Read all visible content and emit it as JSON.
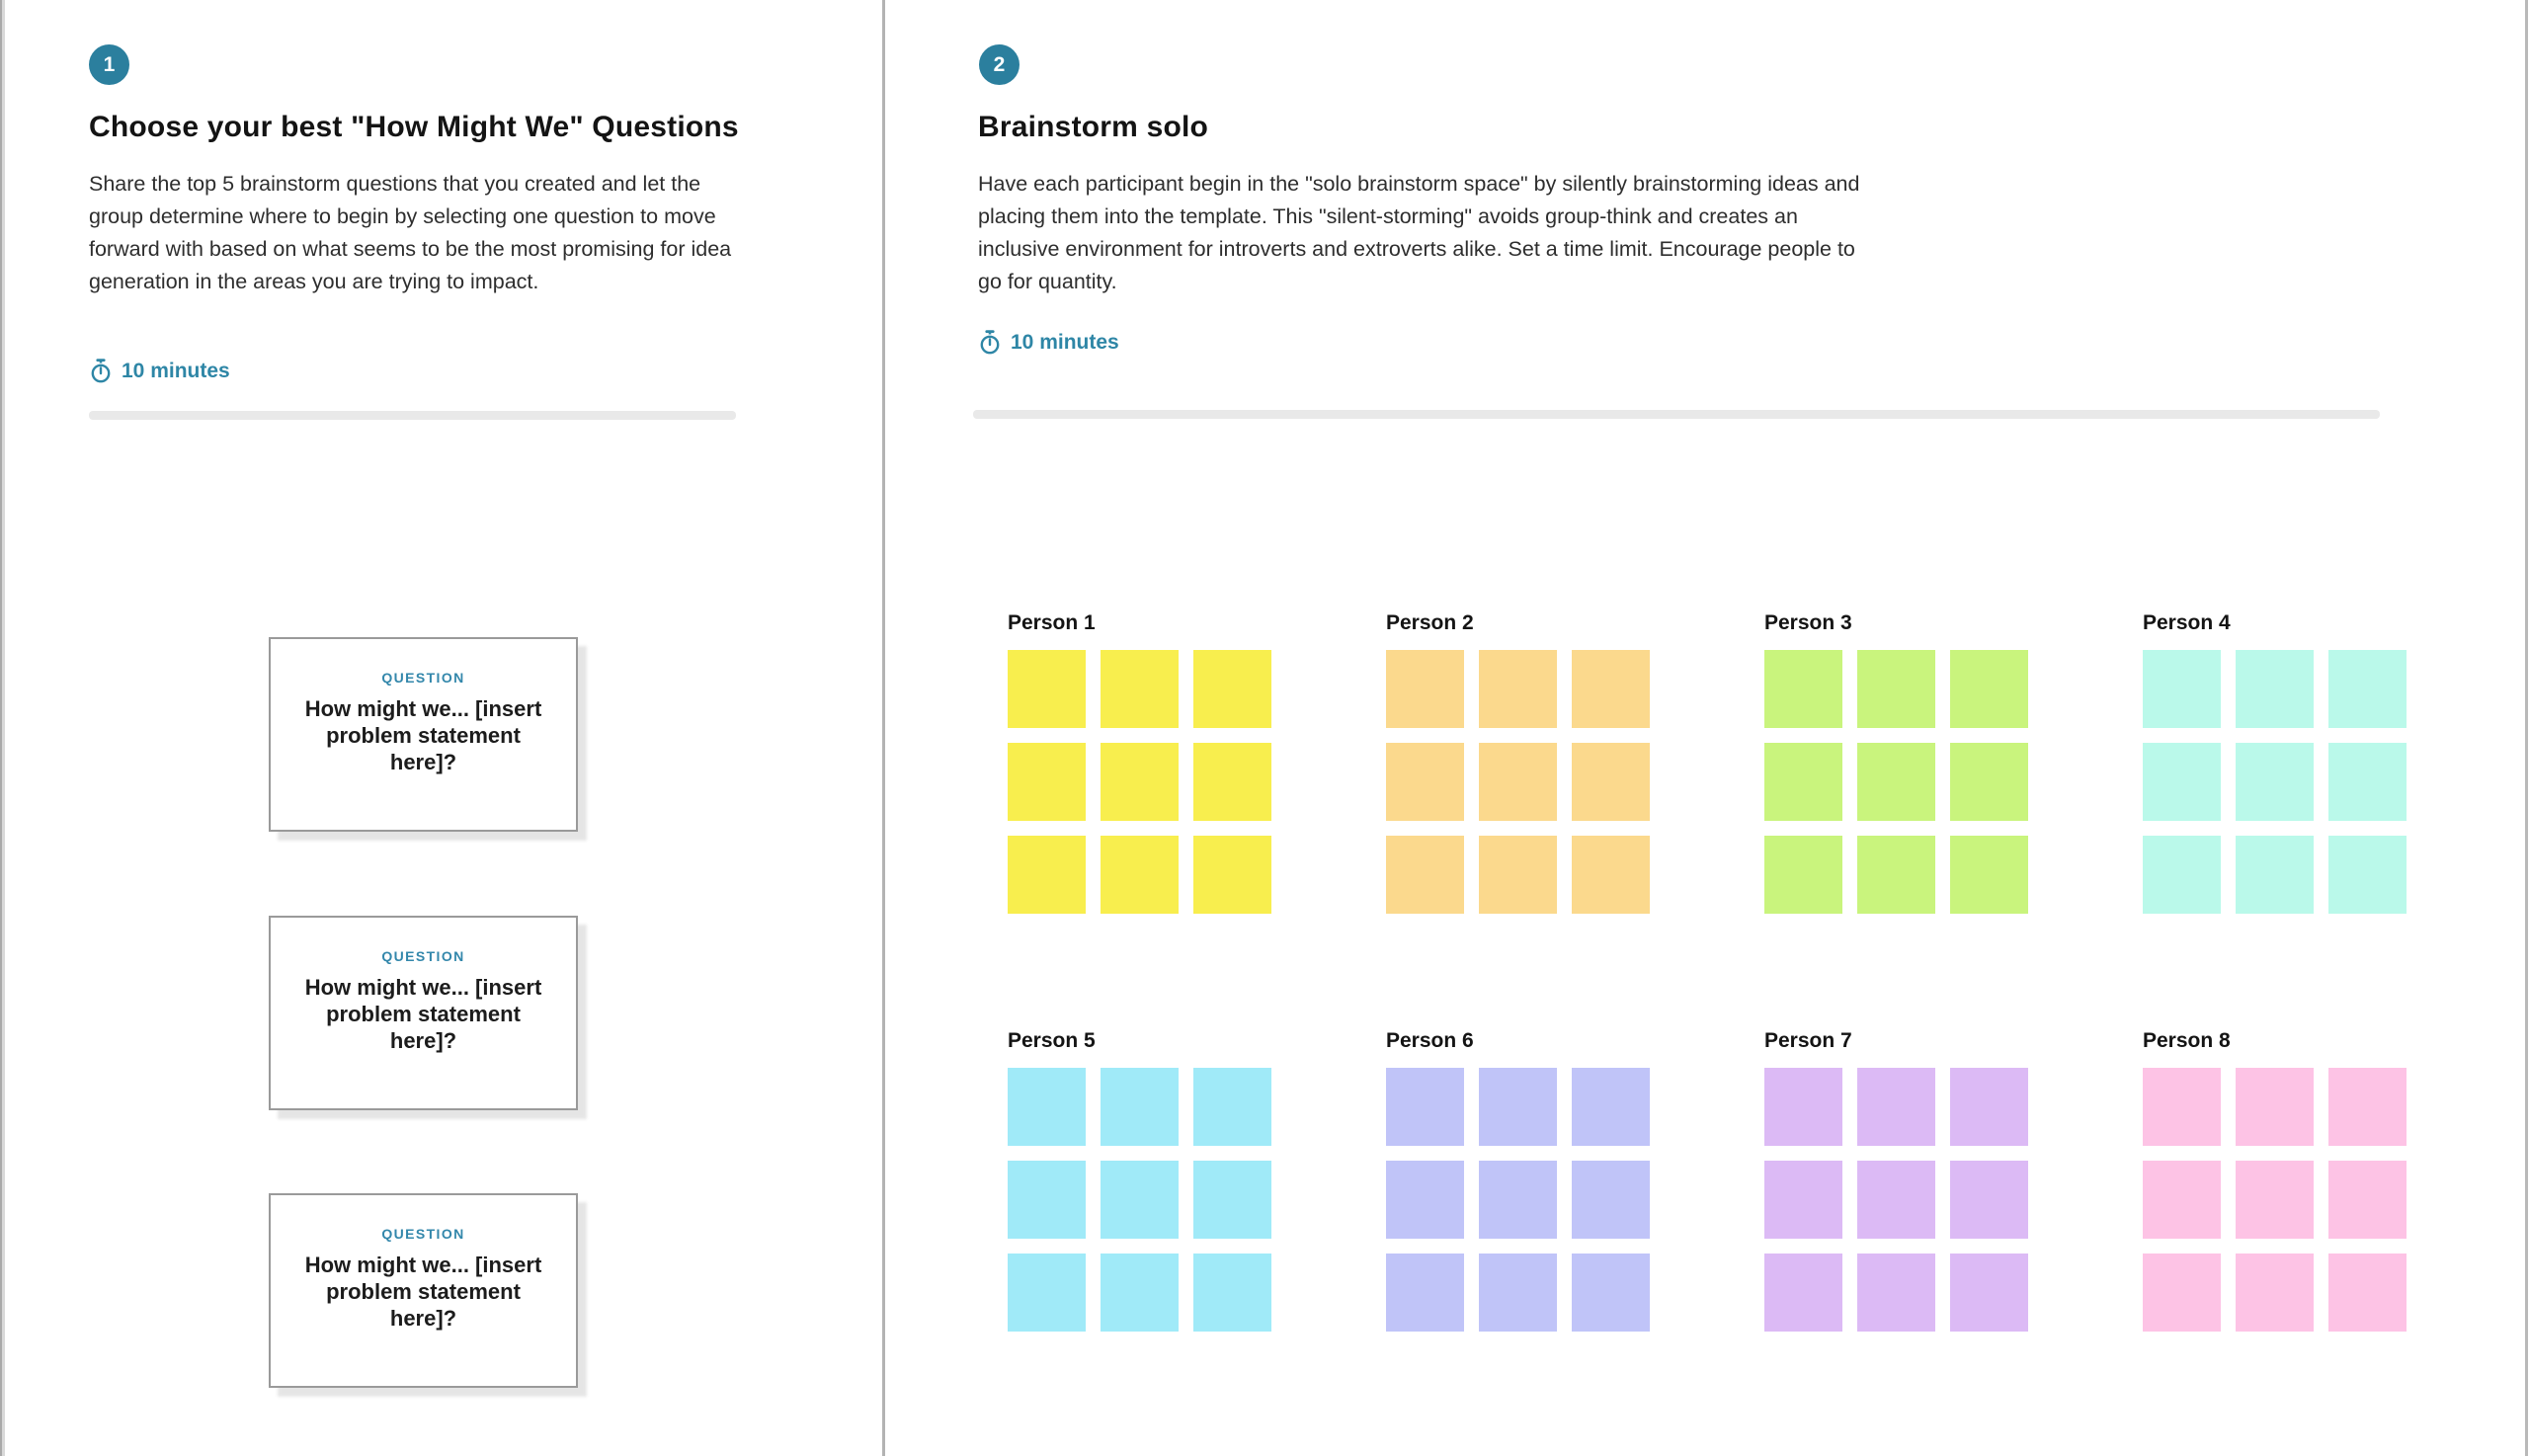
{
  "colors": {
    "badge_teal": "#2b7f9e",
    "timer_teal": "#2e86a6",
    "question_label_teal": "#3387ab",
    "divider_gray": "#b3b3b3",
    "track_gray": "#e9e9e9"
  },
  "sections": [
    {
      "badge": "1",
      "title": "Choose your best \"How Might We\" Questions",
      "description": "Share the top 5 brainstorm questions that you created and let the group determine where to begin by selecting one question to move forward with based on what seems to be the most promising for idea generation in the areas you are trying to impact.",
      "timer_icon": "stopwatch-icon",
      "timer": "10 minutes"
    },
    {
      "badge": "2",
      "title": "Brainstorm solo",
      "description": "Have each participant begin in the \"solo brainstorm space\" by silently brainstorming ideas and placing them into the template. This \"silent-storming\" avoids group-think and creates an inclusive environment for introverts and extroverts alike. Set a time limit. Encourage people to go for quantity.",
      "timer_icon": "stopwatch-icon",
      "timer": "10 minutes"
    }
  ],
  "question_cards": [
    {
      "label": "QUESTION",
      "text": "How might we... [insert problem statement here]?"
    },
    {
      "label": "QUESTION",
      "text": "How might we... [insert problem statement here]?"
    },
    {
      "label": "QUESTION",
      "text": "How might we... [insert problem statement here]?"
    }
  ],
  "persons": [
    {
      "name": "Person 1",
      "color": "#f8ee4e"
    },
    {
      "name": "Person 2",
      "color": "#fbd98d"
    },
    {
      "name": "Person 3",
      "color": "#c9f47d"
    },
    {
      "name": "Person 4",
      "color": "#baf9ea"
    },
    {
      "name": "Person 5",
      "color": "#a0eaf8"
    },
    {
      "name": "Person 6",
      "color": "#c0c4f8"
    },
    {
      "name": "Person 7",
      "color": "#dcbaf5"
    },
    {
      "name": "Person 8",
      "color": "#fdc3e5"
    }
  ],
  "stickies_per_person": 9
}
